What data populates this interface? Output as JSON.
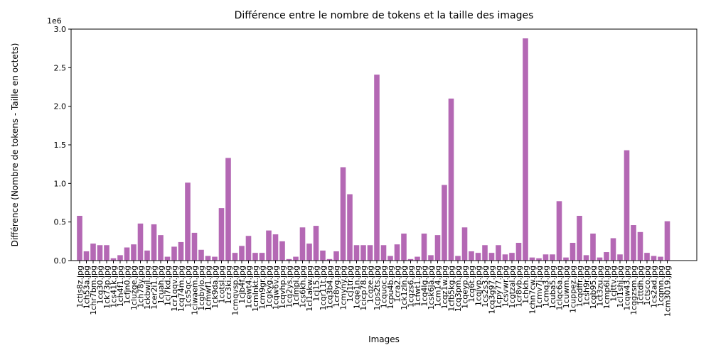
{
  "chart_data": {
    "type": "bar",
    "title": "Différence entre le nombre de tokens et la taille des images",
    "xlabel": "Images",
    "ylabel": "Différence (Nombre de tokens - Taille en octets)",
    "y_offset_label": "1e6",
    "color": "#b468b4",
    "categories": [
      "1ctis8z.jpg",
      "1ch53a.jpg",
      "1chr7bm.jpg",
      "1cq30.jpg",
      "1ck73p.jpg",
      "1cs41k.jpg",
      "1ch4f1.jpg",
      "1cfjn0.jpg",
      "1cluzge.jpg",
      "1ch78y.jpg",
      "1ckbwjl.jpg",
      "1cer2i1.jpg",
      "1cuah.jpg",
      "1ci7kd.jpg",
      "1cr1qqv.jpg",
      "1cq74m.jpg",
      "1cs5qc.jpg",
      "1ciwaem.jpg",
      "1cgbylo.jpg",
      "1cmwf1.jpg",
      "1ck9da.jpg",
      "1cotsl.jpg",
      "1cr3ki.jpg",
      "1cmqvsp.jpg",
      "1cjb4f.jpg",
      "1cewt4.jpg",
      "1cmlnkt.jpg",
      "1cm9gr.jpg",
      "1cgkyg.jpg",
      "1cqw6v.jpg",
      "1cqvhp.jpg",
      "1cq2ys.jpg",
      "1clmpi.jpg",
      "1cs6kh.jpg",
      "1cl1akw.jpg",
      "1cj15.jpg",
      "1cqr11t.jpg",
      "1cq3b4.jpg",
      "1cr8yg.jpg",
      "1cmyny.jpg",
      "1cj1tr.jpg",
      "1cqe1n.jpg",
      "1cicp78.jpg",
      "1cqze.jpg",
      "1cps2ts.jpg",
      "1cquoc.jpg",
      "1cpu4b.jpg",
      "1cra2.jpg",
      "1ck1zln.jpg",
      "1cqzs6.jpg",
      "1cfwt1.jpg",
      "1cq4lg.jpg",
      "1csk6ja.jpg",
      "1cm14.jpg",
      "1cqz1w.jpg",
      "1cfb5kg.jpg",
      "1cq3pm.jpg",
      "1cqeyp.jpg",
      "1cq6t.jpg",
      "1cqjvp.jpg",
      "1cs2s3.jpg",
      "1cq3g97.jpg",
      "1cpy77.jpg",
      "1csvwr.jpg",
      "1cgtzal.jpg",
      "1cr8vb.jpg",
      "1chkh.jpg",
      "1chn7cw.jpg",
      "1cmv7j.jpg",
      "1cmq3.jpg",
      "1cuba5.jpg",
      "1clqc6a.jpg",
      "1cuwm.jpg",
      "1cuppez.jpg",
      "1cqdffr.jpg",
      "1csh9r.jpg",
      "1cgb95.jpg",
      "1ct3zu.jpg",
      "1cmp6l.jpg",
      "1cjttv.jpg",
      "1cl1shj.jpg",
      "1cqw43.jpg",
      "1cqgzsm.jpg",
      "1cttdh.jpg",
      "1ctsco.jpg",
      "1cs2ad.jpg",
      "1cqmn.jpg",
      "1cm3019.jpg"
    ],
    "values": [
      0.58,
      0.12,
      0.22,
      0.2,
      0.2,
      0.03,
      0.07,
      0.17,
      0.21,
      0.48,
      0.13,
      0.47,
      0.33,
      0.05,
      0.18,
      0.24,
      1.01,
      0.36,
      0.14,
      0.06,
      0.05,
      0.68,
      1.33,
      0.1,
      0.19,
      0.32,
      0.1,
      0.1,
      0.39,
      0.34,
      0.25,
      0.02,
      0.05,
      0.43,
      0.22,
      0.45,
      0.13,
      0.02,
      0.12,
      1.21,
      0.86,
      0.2,
      0.2,
      0.2,
      2.41,
      0.2,
      0.06,
      0.21,
      0.35,
      0.02,
      0.05,
      0.35,
      0.07,
      0.33,
      0.98,
      2.1,
      0.06,
      0.43,
      0.12,
      0.1,
      0.2,
      0.1,
      0.2,
      0.08,
      0.1,
      0.23,
      2.88,
      0.04,
      0.03,
      0.08,
      0.08,
      0.77,
      0.04,
      0.23,
      0.58,
      0.07,
      0.35,
      0.04,
      0.11,
      0.29,
      0.08,
      1.43,
      0.46,
      0.37,
      0.1,
      0.06,
      0.05,
      0.51
    ],
    "ylim": [
      0,
      3.0
    ],
    "yticks": [
      {
        "value": 0,
        "label": "0.0"
      },
      0.5,
      {
        "value": 1,
        "label": "1.0"
      },
      1.5,
      {
        "value": 2,
        "label": "2.0"
      },
      2.5,
      {
        "value": 3,
        "label": "3.0"
      }
    ]
  }
}
